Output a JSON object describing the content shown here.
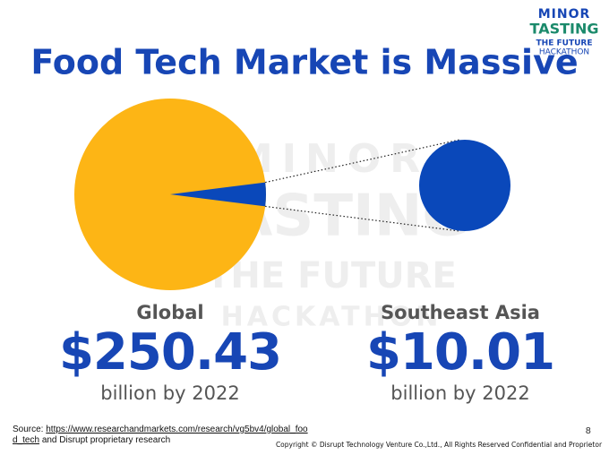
{
  "chart_data": {
    "type": "pie",
    "title": "Food Tech Market is Massive",
    "categories": [
      "Global",
      "Southeast Asia"
    ],
    "values": [
      250.43,
      10.01
    ],
    "value_labels": [
      "$250.43",
      "$10.01"
    ],
    "sublabels": [
      "billion by 2022",
      "billion by 2022"
    ],
    "colors": [
      "#FDB515",
      "#0A48BA"
    ]
  },
  "logo": {
    "lines": [
      "MINOR",
      "TASTING",
      "THE FUTURE",
      "HACKATHON"
    ]
  },
  "footer": {
    "source_prefix": "Source:",
    "source_link": "https://www.researchandmarkets.com/research/vg5bv4/global_food_tech",
    "source_suffix": "and Disrupt proprietary research",
    "page": "8",
    "copyright": "Copyright  ©  Disrupt Technology Venture Co.,Ltd., All Rights Reserved Confidential and Proprietor"
  }
}
